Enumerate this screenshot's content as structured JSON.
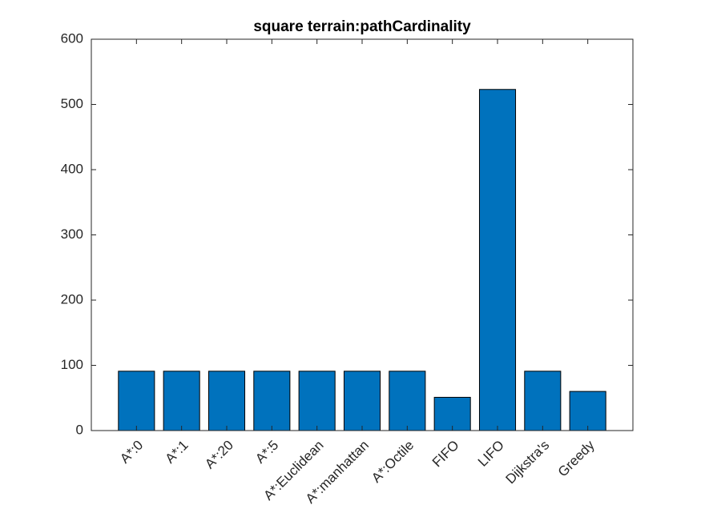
{
  "chart_data": {
    "type": "bar",
    "title": "square terrain:pathCardinality",
    "xlabel": "",
    "ylabel": "",
    "categories": [
      "A*:0",
      "A*:1",
      "A*:20",
      "A*:5",
      "A*:Euclidean",
      "A*:manhattan",
      "A*:Octile",
      "FIFO",
      "LIFO",
      "Dijkstra's",
      "Greedy"
    ],
    "values": [
      91,
      91,
      91,
      91,
      91,
      91,
      91,
      51,
      523,
      91,
      60
    ],
    "ylim": [
      0,
      600
    ],
    "yticks": [
      0,
      100,
      200,
      300,
      400,
      500,
      600
    ],
    "grid": false,
    "bar_color": "#0072BD",
    "edge_color": "#000000"
  }
}
